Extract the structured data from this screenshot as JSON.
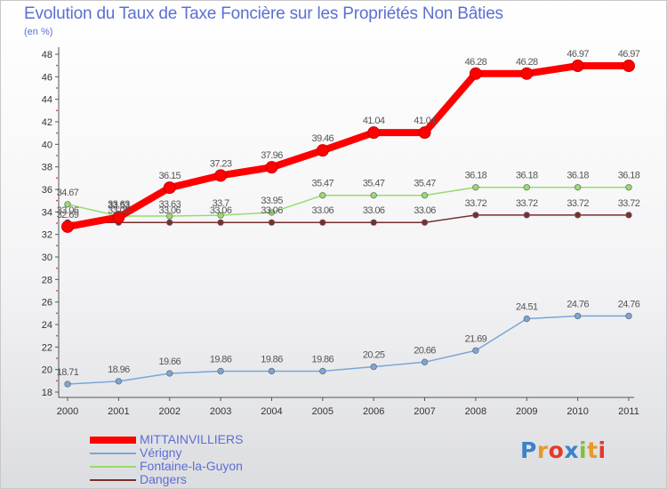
{
  "title": "Evolution du Taux de Taxe Foncière sur les Propriétés Non Bâties",
  "subtitle": "(en %)",
  "logo_text": "Proxiti",
  "chart_data": {
    "type": "line",
    "title": "Evolution du Taux de Taxe Foncière sur les Propriétés Non Bâties",
    "ylabel": "(en %)",
    "xlabel": "",
    "x": [
      "2000",
      "2001",
      "2002",
      "2003",
      "2004",
      "2005",
      "2006",
      "2007",
      "2008",
      "2009",
      "2010",
      "2011"
    ],
    "ylim": [
      18,
      48
    ],
    "yticks": [
      "18",
      "20",
      "22",
      "24",
      "26",
      "28",
      "30",
      "32",
      "34",
      "36",
      "38",
      "40",
      "42",
      "44",
      "46",
      "48"
    ],
    "grid": false,
    "legend_position": "bottom-left",
    "series": [
      {
        "name": "MITTAINVILLIERS",
        "color": "#ff0000",
        "values": [
          32.69,
          33.53,
          36.15,
          37.23,
          37.96,
          39.46,
          41.04,
          41.04,
          46.28,
          46.28,
          46.97,
          46.97
        ],
        "labels": [
          "32.69",
          "33.53",
          "36.15",
          "37.23",
          "37.96",
          "39.46",
          "41.04",
          "41.04",
          "46.28",
          "46.28",
          "46.97",
          "46.97"
        ]
      },
      {
        "name": "Vérigny",
        "color": "#7aa6d8",
        "values": [
          18.71,
          18.96,
          19.66,
          19.86,
          19.86,
          19.86,
          20.25,
          20.66,
          21.69,
          24.51,
          24.76,
          24.76
        ],
        "labels": [
          "18.71",
          "18.96",
          "19.66",
          "19.86",
          "19.86",
          "19.86",
          "20.25",
          "20.66",
          "21.69",
          "24.51",
          "24.76",
          "24.76"
        ]
      },
      {
        "name": "Fontaine-la-Guyon",
        "color": "#96dc6e",
        "values": [
          34.67,
          33.63,
          33.63,
          33.7,
          33.95,
          35.47,
          35.47,
          35.47,
          36.18,
          36.18,
          36.18,
          36.18
        ],
        "labels": [
          "34.67",
          "33.63",
          "33.63",
          "33.7",
          "33.95",
          "35.47",
          "35.47",
          "35.47",
          "36.18",
          "36.18",
          "36.18",
          "36.18"
        ]
      },
      {
        "name": "Dangers",
        "color": "#7a2e2e",
        "values": [
          33.06,
          33.06,
          33.06,
          33.06,
          33.06,
          33.06,
          33.06,
          33.06,
          33.72,
          33.72,
          33.72,
          33.72
        ],
        "labels": [
          "33.06",
          "33.06",
          "33.06",
          "33.06",
          "33.06",
          "33.06",
          "33.06",
          "33.06",
          "33.72",
          "33.72",
          "33.72",
          "33.72"
        ]
      }
    ]
  }
}
